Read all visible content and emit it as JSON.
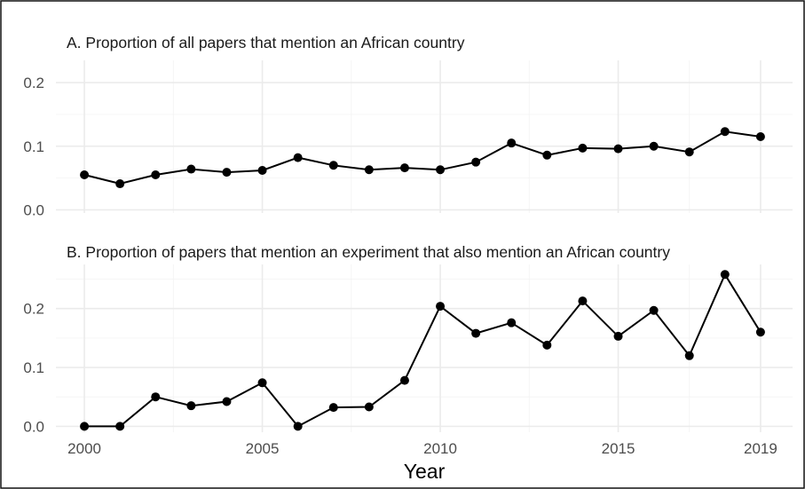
{
  "chart_data": {
    "type": "line",
    "xlabel": "Year",
    "x_ticks": [
      2000,
      2005,
      2010,
      2015,
      2019
    ],
    "xlim": [
      1999.2,
      2019.9
    ],
    "x": [
      2000,
      2001,
      2002,
      2003,
      2004,
      2005,
      2006,
      2007,
      2008,
      2009,
      2010,
      2011,
      2012,
      2013,
      2014,
      2015,
      2016,
      2017,
      2018,
      2019
    ],
    "grid": true,
    "panels": [
      {
        "title": "A. Proportion of all papers that mention an African country",
        "ylim": [
          -0.005,
          0.235
        ],
        "y_ticks": [
          "0.0",
          "0.1",
          "0.2"
        ],
        "y_tick_values": [
          0,
          0.1,
          0.2
        ],
        "values": [
          0.055,
          0.041,
          0.055,
          0.064,
          0.059,
          0.062,
          0.082,
          0.07,
          0.063,
          0.066,
          0.063,
          0.075,
          0.105,
          0.086,
          0.097,
          0.096,
          0.1,
          0.091,
          0.123,
          0.115
        ]
      },
      {
        "title": "B. Proportion of papers that mention an experiment that also mention an African country",
        "ylim": [
          -0.01,
          0.275
        ],
        "y_ticks": [
          "0.0",
          "0.1",
          "0.2"
        ],
        "y_tick_values": [
          0,
          0.1,
          0.2
        ],
        "values": [
          0.0,
          0.0,
          0.05,
          0.035,
          0.042,
          0.074,
          0.0,
          0.032,
          0.033,
          0.078,
          0.204,
          0.158,
          0.176,
          0.138,
          0.213,
          0.153,
          0.197,
          0.12,
          0.258,
          0.16
        ]
      }
    ]
  }
}
